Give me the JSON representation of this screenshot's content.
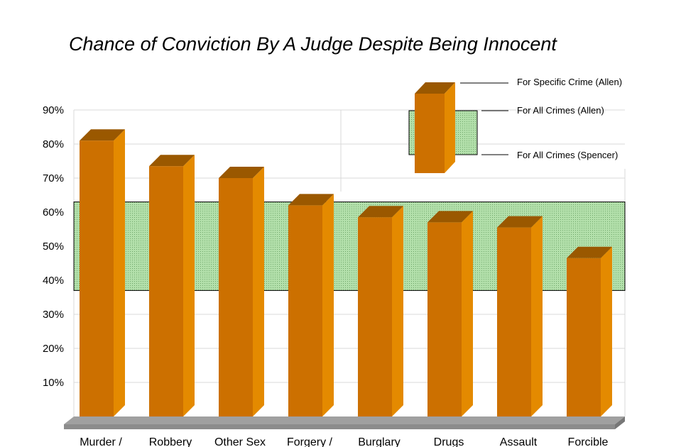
{
  "chart_data": {
    "type": "bar",
    "title": "Chance of Conviction By A Judge Despite Being Innocent",
    "categories": [
      "Murder /",
      "Robbery",
      "Other Sex",
      "Forgery /",
      "Burglary",
      "Drugs",
      "Assault",
      "Forcible"
    ],
    "series": [
      {
        "name": "For Specific Crime (Allen)",
        "values": [
          81,
          73.5,
          70,
          62,
          58.5,
          57,
          55.5,
          46.5
        ]
      }
    ],
    "band": {
      "name": "For All Crimes (Allen)",
      "upper": 63,
      "lower": 37
    },
    "band_lower_label": "For All Crimes (Spencer)",
    "ylim": [
      0,
      90
    ],
    "yticks": [
      "10%",
      "20%",
      "30%",
      "40%",
      "50%",
      "60%",
      "70%",
      "80%",
      "90%"
    ],
    "ytick_values": [
      10,
      20,
      30,
      40,
      50,
      60,
      70,
      80,
      90
    ],
    "grid": true,
    "legend_position": "top-right",
    "colors": {
      "bar_front": "#cc7000",
      "bar_side": "#e48a00",
      "bar_top": "#9a5800",
      "band_fill": "#a8d9a0",
      "floor": "#a0a0a0"
    }
  }
}
